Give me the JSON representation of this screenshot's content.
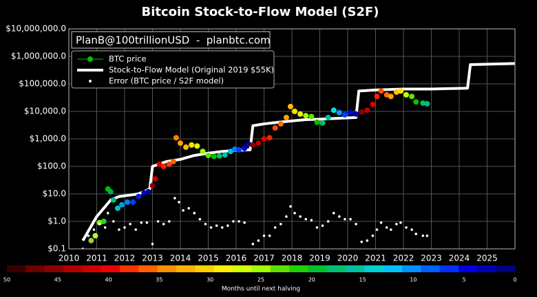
{
  "chart_data": {
    "type": "scatter",
    "title": "Bitcoin Stock-to-Flow Model (S2F)",
    "annotation": "PlanB@100trillionUSD  -  planbtc.com",
    "log_scale_y": true,
    "grid": true,
    "legend": "upper left",
    "xlim": [
      2010,
      2026
    ],
    "xticks": [
      2010,
      2011,
      2012,
      2013,
      2014,
      2015,
      2016,
      2017,
      2018,
      2019,
      2020,
      2021,
      2022,
      2023,
      2024,
      2025
    ],
    "ylim": [
      0.1,
      10000000
    ],
    "yticks": [
      {
        "value": 0.1,
        "label": "$0.1"
      },
      {
        "value": 1,
        "label": "$1.0"
      },
      {
        "value": 10,
        "label": "$10.0"
      },
      {
        "value": 100,
        "label": "$100.0"
      },
      {
        "value": 1000,
        "label": "$1,000.0"
      },
      {
        "value": 10000,
        "label": "$10,000.0"
      },
      {
        "value": 100000,
        "label": "$100,000.0"
      },
      {
        "value": 1000000,
        "label": "$1,000,000.0"
      },
      {
        "value": 10000000,
        "label": "$10,000,000.0"
      }
    ],
    "series": [
      {
        "name": "BTC price",
        "type": "scatter",
        "color": "#00c000",
        "x": [
          2010.8,
          2010.95,
          2011.1,
          2011.25,
          2011.4,
          2011.5,
          2011.6,
          2011.75,
          2011.9,
          2012.1,
          2012.3,
          2012.5,
          2012.7,
          2012.85,
          2013.0,
          2013.1,
          2013.25,
          2013.4,
          2013.6,
          2013.75,
          2013.85,
          2014.0,
          2014.2,
          2014.4,
          2014.6,
          2014.8,
          2015.0,
          2015.2,
          2015.4,
          2015.6,
          2015.8,
          2015.95,
          2016.1,
          2016.3,
          2016.45,
          2016.6,
          2016.8,
          2017.0,
          2017.2,
          2017.4,
          2017.6,
          2017.8,
          2017.95,
          2018.1,
          2018.3,
          2018.5,
          2018.7,
          2018.9,
          2019.1,
          2019.3,
          2019.5,
          2019.7,
          2019.9,
          2020.1,
          2020.3,
          2020.5,
          2020.7,
          2020.9,
          2021.05,
          2021.2,
          2021.4,
          2021.55,
          2021.75,
          2021.9,
          2022.1,
          2022.3,
          2022.45,
          2022.7,
          2022.85
        ],
        "values": [
          0.2,
          0.3,
          0.9,
          1,
          15,
          12,
          6,
          3,
          4,
          5,
          5,
          8,
          11,
          12,
          20,
          35,
          120,
          100,
          120,
          150,
          1100,
          700,
          500,
          600,
          550,
          350,
          250,
          230,
          240,
          260,
          350,
          420,
          400,
          450,
          650,
          600,
          700,
          1000,
          1100,
          2500,
          3500,
          6000,
          15000,
          10000,
          8000,
          7000,
          6500,
          4000,
          3800,
          6000,
          11000,
          9000,
          7500,
          9000,
          8000,
          9500,
          11000,
          18000,
          35000,
          55000,
          40000,
          35000,
          50000,
          55000,
          40000,
          35000,
          22000,
          20000,
          19000
        ],
        "colors": [
          "#9acd32",
          "#adff2f",
          "#7fff00",
          "#32cd32",
          "#00c000",
          "#00b050",
          "#00c080",
          "#00c0c0",
          "#00a0e0",
          "#0080ff",
          "#0040ff",
          "#0020d0",
          "#0000c0",
          "#000090",
          "#8b0000",
          "#c00000",
          "#e00000",
          "#ff2000",
          "#ff4000",
          "#ff6000",
          "#ff8000",
          "#ffa000",
          "#ffc000",
          "#ffe000",
          "#e0ff00",
          "#a0ff00",
          "#60e000",
          "#00c000",
          "#00c060",
          "#00c0a0",
          "#00c0e0",
          "#0080ff",
          "#0040ff",
          "#0000e0",
          "#0000a0",
          "#8b0000",
          "#c00000",
          "#e00000",
          "#ff2000",
          "#ff5000",
          "#ff7000",
          "#ffa000",
          "#ffc000",
          "#ffe000",
          "#e0ff00",
          "#a0ff00",
          "#60e000",
          "#00c000",
          "#00c060",
          "#00c0a0",
          "#00e0e0",
          "#00a0ff",
          "#0040ff",
          "#0000e0",
          "#0000a0",
          "#8b0000",
          "#c00000",
          "#e00000",
          "#ff2000",
          "#ff5000",
          "#ff7000",
          "#ffa000",
          "#ffc000",
          "#ffe000",
          "#c0ff00",
          "#60e000",
          "#00c000",
          "#00c060",
          "#00c080"
        ]
      },
      {
        "name": "Stock-to-Flow Model (Original 2019 $55K)",
        "type": "line",
        "color": "#ffffff",
        "x": [
          2010.5,
          2011.0,
          2011.5,
          2011.8,
          2012.5,
          2012.9,
          2013.0,
          2013.5,
          2014.0,
          2014.5,
          2015.0,
          2015.5,
          2016.0,
          2016.5,
          2016.6,
          2017.0,
          2017.5,
          2018.0,
          2018.5,
          2019.0,
          2019.5,
          2020.3,
          2020.4,
          2021.0,
          2022.0,
          2023.0,
          2024.3,
          2024.4,
          2026.0
        ],
        "values": [
          0.2,
          1.5,
          6,
          8,
          10,
          15,
          100,
          150,
          180,
          250,
          300,
          350,
          380,
          400,
          3000,
          3500,
          4000,
          4500,
          5000,
          5200,
          5500,
          6000,
          55000,
          60000,
          65000,
          65000,
          70000,
          500000,
          550000
        ]
      },
      {
        "name": "Error (BTC price / S2F model)",
        "type": "dots",
        "color": "#ffffff",
        "x": [
          2010.5,
          2010.7,
          2010.9,
          2011.1,
          2011.3,
          2011.4,
          2011.6,
          2011.8,
          2012.0,
          2012.2,
          2012.4,
          2012.6,
          2012.8,
          2013.0,
          2013.2,
          2013.4,
          2013.6,
          2013.8,
          2013.95,
          2014.1,
          2014.3,
          2014.5,
          2014.7,
          2014.9,
          2015.1,
          2015.3,
          2015.5,
          2015.7,
          2015.9,
          2016.1,
          2016.3,
          2016.6,
          2016.8,
          2017.0,
          2017.2,
          2017.4,
          2017.6,
          2017.8,
          2017.95,
          2018.1,
          2018.3,
          2018.5,
          2018.7,
          2018.9,
          2019.1,
          2019.3,
          2019.5,
          2019.7,
          2019.9,
          2020.1,
          2020.3,
          2020.5,
          2020.7,
          2020.9,
          2021.05,
          2021.2,
          2021.4,
          2021.55,
          2021.75,
          2021.9,
          2022.1,
          2022.3,
          2022.45,
          2022.7,
          2022.85
        ],
        "values": [
          0.1,
          0.3,
          0.5,
          0.8,
          0.6,
          2,
          1,
          0.5,
          0.6,
          0.8,
          0.5,
          0.9,
          0.9,
          0.15,
          1,
          0.8,
          1,
          7,
          5,
          2.5,
          3,
          2,
          1.2,
          0.8,
          0.6,
          0.7,
          0.6,
          0.7,
          1,
          1,
          0.9,
          0.15,
          0.2,
          0.3,
          0.3,
          0.6,
          0.8,
          1.5,
          3.5,
          2,
          1.5,
          1.2,
          1.1,
          0.6,
          0.7,
          1,
          2,
          1.5,
          1.2,
          1.2,
          0.8,
          0.18,
          0.2,
          0.3,
          0.5,
          0.9,
          0.6,
          0.5,
          0.8,
          0.9,
          0.6,
          0.5,
          0.35,
          0.3,
          0.3
        ]
      }
    ],
    "colorbar": {
      "label": "Months until next halving",
      "xlim": [
        50,
        0
      ],
      "xticks": [
        50,
        45,
        40,
        35,
        30,
        25,
        20,
        15,
        10,
        5,
        0
      ],
      "colors": [
        "#3a0000",
        "#6a0000",
        "#8b0000",
        "#b00000",
        "#d00000",
        "#f00000",
        "#ff3000",
        "#ff6000",
        "#ff9000",
        "#ffb000",
        "#ffd000",
        "#fff000",
        "#d0ff00",
        "#a0ff00",
        "#60e000",
        "#20d000",
        "#00c030",
        "#00c070",
        "#00c0a0",
        "#00d0d0",
        "#00c0ff",
        "#0090ff",
        "#0060ff",
        "#0030ff",
        "#0000e0",
        "#0000b0",
        "#000080"
      ]
    }
  }
}
